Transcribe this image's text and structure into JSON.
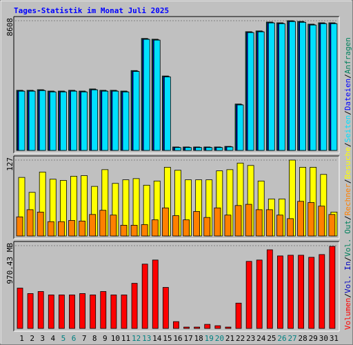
{
  "chart_data": [
    {
      "type": "bar",
      "title": "Tages-Statistik im Monat Juli 2025",
      "categories": [
        "1",
        "2",
        "3",
        "4",
        "5",
        "6",
        "7",
        "8",
        "9",
        "10",
        "11",
        "12",
        "13",
        "14",
        "15",
        "16",
        "17",
        "18",
        "19",
        "20",
        "21",
        "22",
        "23",
        "24",
        "25",
        "26",
        "27",
        "28",
        "29",
        "30",
        "31"
      ],
      "series": [
        {
          "name": "Anfragen",
          "color": "#00805c",
          "values": [
            3990,
            3990,
            4030,
            3940,
            3940,
            3990,
            3940,
            4080,
            3990,
            3990,
            3940,
            5300,
            7430,
            7380,
            4940,
            230,
            230,
            230,
            230,
            230,
            270,
            3080,
            7880,
            7930,
            8520,
            8470,
            8608,
            8560,
            8380,
            8470,
            8470
          ]
        },
        {
          "name": "Dateien",
          "color": "#0000ff",
          "values": [
            3950,
            3950,
            3990,
            3900,
            3900,
            3950,
            3900,
            4040,
            3950,
            3950,
            3900,
            5260,
            7390,
            7340,
            4900,
            210,
            210,
            210,
            210,
            210,
            250,
            3040,
            7840,
            7890,
            8480,
            8430,
            8570,
            8520,
            8340,
            8430,
            8430
          ]
        },
        {
          "name": "Seiten",
          "color": "#00e0ff",
          "values": [
            3930,
            3930,
            3970,
            3880,
            3880,
            3930,
            3880,
            4020,
            3930,
            3930,
            3880,
            5240,
            7370,
            7320,
            4880,
            190,
            190,
            190,
            190,
            190,
            230,
            3020,
            7820,
            7870,
            8460,
            8410,
            8550,
            8500,
            8320,
            8410,
            8410
          ]
        }
      ],
      "ylim": [
        0,
        8608
      ],
      "yticks": [
        8608
      ]
    },
    {
      "type": "bar",
      "series": [
        {
          "name": "Besuche",
          "color": "#ffff00",
          "values": [
            98,
            73,
            107,
            95,
            93,
            100,
            101,
            83,
            111,
            88,
            94,
            96,
            85,
            92,
            115,
            110,
            94,
            94,
            94,
            109,
            111,
            122,
            118,
            92,
            62,
            62,
            127,
            115,
            115,
            103,
            40
          ]
        },
        {
          "name": "Rechner",
          "color": "#ff8000",
          "values": [
            32,
            44,
            40,
            24,
            24,
            26,
            25,
            36,
            43,
            35,
            18,
            18,
            19,
            27,
            47,
            34,
            27,
            41,
            31,
            47,
            35,
            51,
            53,
            44,
            44,
            35,
            29,
            58,
            56,
            50,
            36
          ]
        }
      ],
      "ylim": [
        0,
        127
      ],
      "yticks": [
        127
      ]
    },
    {
      "type": "bar",
      "series": [
        {
          "name": "Volumen",
          "color": "#ff0000",
          "values": [
            473,
            409,
            433,
            393,
            393,
            393,
            409,
            393,
            433,
            393,
            393,
            529,
            754,
            802,
            481,
            80,
            16,
            16,
            48,
            32,
            16,
            297,
            786,
            802,
            922,
            850,
            858,
            858,
            834,
            866,
            962
          ]
        },
        {
          "name": "Vol. In",
          "color": "#0000c0",
          "values": [
            null,
            null,
            null,
            null,
            null,
            null,
            null,
            null,
            null,
            null,
            null,
            null,
            null,
            null,
            null,
            null,
            null,
            null,
            null,
            null,
            null,
            null,
            null,
            null,
            null,
            null,
            null,
            null,
            null,
            null,
            null
          ]
        },
        {
          "name": "Vol. Out",
          "color": "#00805c",
          "values": [
            null,
            null,
            null,
            null,
            null,
            null,
            null,
            null,
            null,
            null,
            null,
            null,
            null,
            null,
            null,
            null,
            null,
            null,
            null,
            null,
            null,
            null,
            null,
            null,
            null,
            null,
            null,
            null,
            null,
            null,
            null
          ]
        }
      ],
      "ylim": [
        0,
        970.43
      ],
      "yticks": [
        {
          "value": 970.43,
          "label": "970.43 MB"
        }
      ]
    }
  ],
  "weekend_days": [
    "5",
    "6",
    "12",
    "13",
    "19",
    "20",
    "26",
    "27"
  ],
  "weekend_color": "#008080",
  "legend_separator": "/"
}
